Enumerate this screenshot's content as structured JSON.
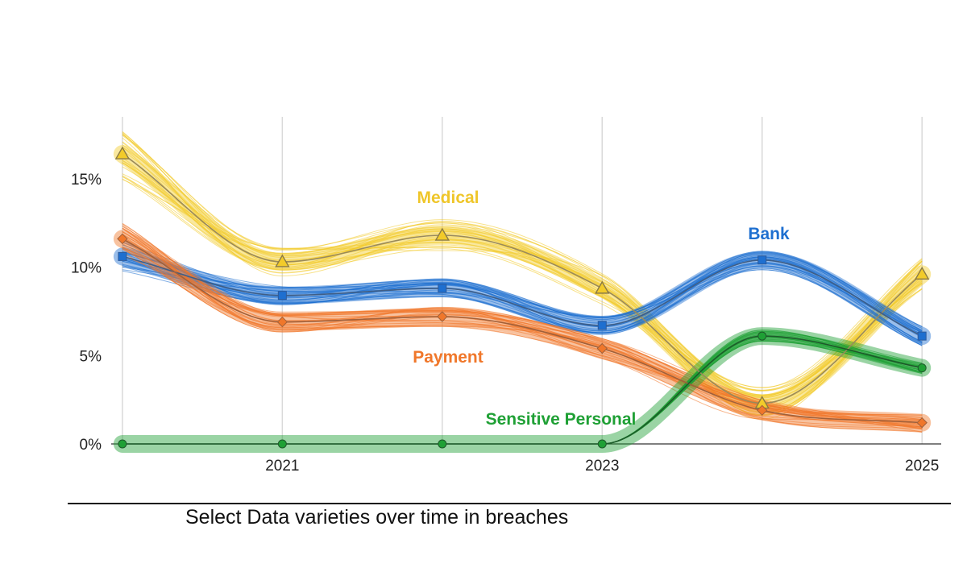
{
  "caption": "Select Data varieties over time in breaches",
  "chart_data": {
    "type": "line",
    "title": "",
    "xlabel": "",
    "ylabel": "",
    "x": [
      2020,
      2021,
      2022,
      2023,
      2024,
      2025
    ],
    "x_tick_values": [
      2021,
      2023,
      2025
    ],
    "x_tick_labels": [
      "2021",
      "2023",
      "2025"
    ],
    "xlim": [
      2019.93,
      2025.12
    ],
    "y_tick_values": [
      0,
      5,
      10,
      15
    ],
    "y_tick_labels": [
      "0%",
      "5%",
      "10%",
      "15%"
    ],
    "ylim": [
      0,
      18.5
    ],
    "grid": "vertical",
    "legend": "direct labels on lines",
    "series": [
      {
        "name": "Medical",
        "color": "#F2CB2A",
        "marker": "triangle",
        "values": [
          16.4,
          10.3,
          11.8,
          8.8,
          2.3,
          9.6
        ]
      },
      {
        "name": "Bank",
        "color": "#1E6FD0",
        "marker": "square",
        "values": [
          10.6,
          8.4,
          8.8,
          6.7,
          10.4,
          6.1
        ]
      },
      {
        "name": "Payment",
        "color": "#F0772A",
        "marker": "diamond",
        "values": [
          11.6,
          6.9,
          7.2,
          5.4,
          1.9,
          1.2
        ]
      },
      {
        "name": "Sensitive Personal",
        "color": "#1FA035",
        "marker": "circle",
        "values": [
          0,
          0,
          0,
          0,
          6.1,
          4.3
        ]
      }
    ]
  }
}
